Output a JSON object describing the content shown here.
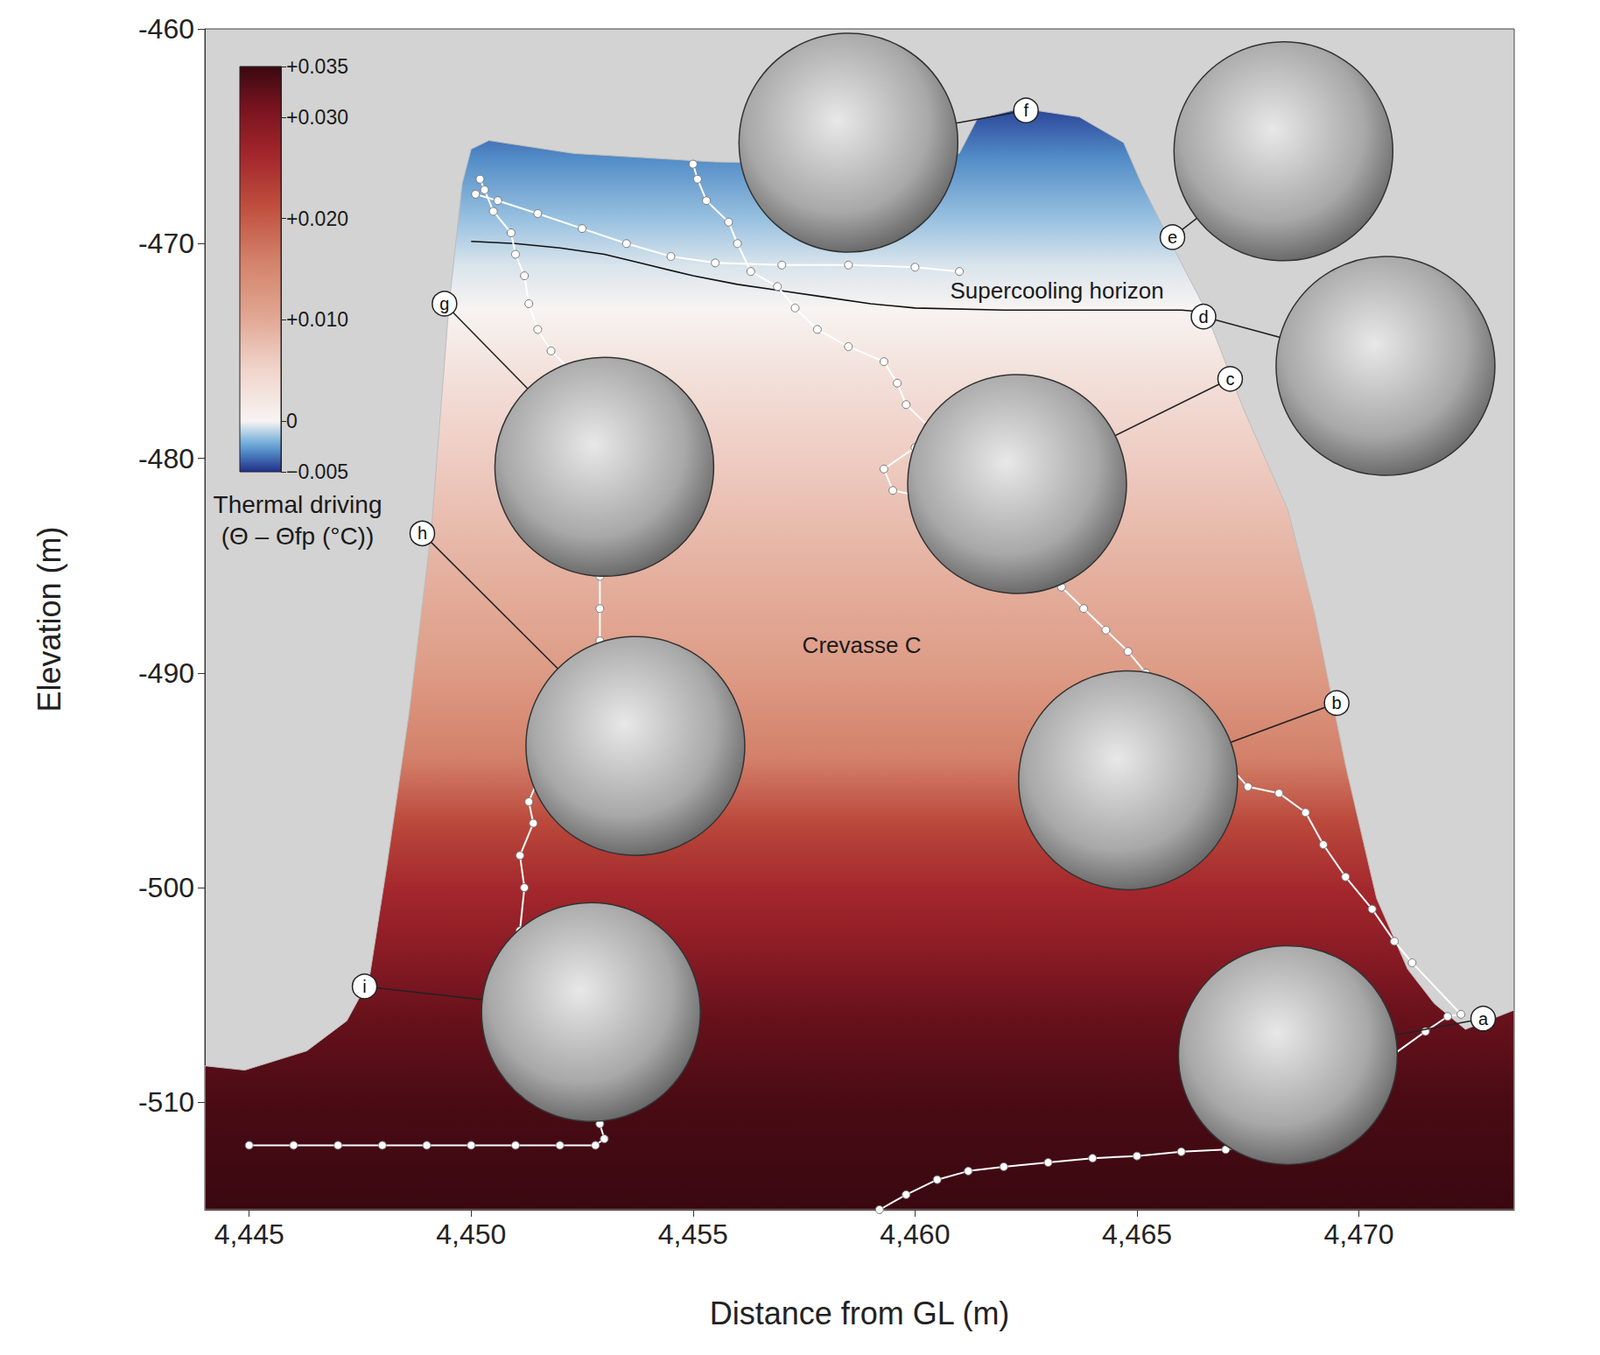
{
  "chart_data": {
    "type": "section",
    "xlabel": "Distance from GL (m)",
    "ylabel": "Elevation (m)",
    "xlim": [
      4444,
      4473.5
    ],
    "ylim": [
      -515,
      -460
    ],
    "xticks": [
      {
        "value": 4445,
        "label": "4,445"
      },
      {
        "value": 4450,
        "label": "4,450"
      },
      {
        "value": 4455,
        "label": "4,455"
      },
      {
        "value": 4460,
        "label": "4,460"
      },
      {
        "value": 4465,
        "label": "4,465"
      },
      {
        "value": 4470,
        "label": "4,470"
      }
    ],
    "yticks": [
      -510,
      -500,
      -490,
      -480,
      -470,
      -460
    ],
    "grid": false,
    "outline": [
      [
        4444,
        -508.3
      ],
      [
        4444.9,
        -508.5
      ],
      [
        4446.3,
        -507.6
      ],
      [
        4447.2,
        -506.2
      ],
      [
        4447.7,
        -504.3
      ],
      [
        4448.1,
        -499
      ],
      [
        4448.6,
        -491.9
      ],
      [
        4449.1,
        -483.4
      ],
      [
        4449.5,
        -472.9
      ],
      [
        4449.8,
        -467.2
      ],
      [
        4450,
        -465.6
      ],
      [
        4450.4,
        -465.2
      ],
      [
        4452.3,
        -465.8
      ],
      [
        4455.5,
        -466.2
      ],
      [
        4458.9,
        -466.3
      ],
      [
        4461,
        -465.8
      ],
      [
        4461.4,
        -464.2
      ],
      [
        4462.4,
        -463.7
      ],
      [
        4463.7,
        -464.1
      ],
      [
        4464.7,
        -465.3
      ],
      [
        4465.1,
        -467.2
      ],
      [
        4465.8,
        -470.1
      ],
      [
        4466.5,
        -472.9
      ],
      [
        4467.4,
        -477.7
      ],
      [
        4468.4,
        -482.4
      ],
      [
        4469,
        -487.2
      ],
      [
        4469.7,
        -494.3
      ],
      [
        4470.4,
        -500.5
      ],
      [
        4471.1,
        -503.8
      ],
      [
        4471.7,
        -505.4
      ],
      [
        4472.4,
        -506.6
      ],
      [
        4473.5,
        -505.7
      ],
      [
        4473.5,
        -515
      ],
      [
        4444,
        -515
      ]
    ],
    "thermal_driving": {
      "title": "Thermal driving (Θ – Θfp (°C))",
      "elevation": [
        -463,
        -466,
        -469,
        -471,
        -473,
        -476,
        -480,
        -485,
        -490,
        -494,
        -497,
        -500,
        -503,
        -506,
        -510,
        -515
      ],
      "values": [
        -0.005,
        -0.003,
        -0.0015,
        -0.0005,
        0,
        0.003,
        0.006,
        0.009,
        0.012,
        0.016,
        0.022,
        0.026,
        0.029,
        0.032,
        0.034,
        0.035
      ],
      "range": [
        -0.005,
        0.035
      ],
      "ticks": [
        {
          "value": -0.005,
          "label": "−0.005"
        },
        0,
        {
          "value": 0.01,
          "label": "+0.010"
        },
        {
          "value": 0.02,
          "label": "+0.020"
        },
        {
          "value": 0.03,
          "label": "+0.030"
        },
        {
          "value": 0.035,
          "label": "+0.035"
        }
      ]
    },
    "horizon": [
      [
        4450,
        -469.9
      ],
      [
        4451,
        -470
      ],
      [
        4452,
        -470.2
      ],
      [
        4453,
        -470.5
      ],
      [
        4454,
        -471
      ],
      [
        4455,
        -471.5
      ],
      [
        4456,
        -471.9
      ],
      [
        4457,
        -472.2
      ],
      [
        4458,
        -472.5
      ],
      [
        4459,
        -472.8
      ],
      [
        4460,
        -473
      ],
      [
        4462,
        -473.1
      ],
      [
        4464,
        -473.1
      ],
      [
        4466,
        -473.1
      ],
      [
        4466.6,
        -473.2
      ]
    ],
    "tracks": {
      "marker": "circle",
      "color": "#ffffff",
      "paths": [
        [
          [
            4445,
            -512
          ],
          [
            4446,
            -512
          ],
          [
            4447,
            -512
          ],
          [
            4448,
            -512
          ],
          [
            4449,
            -512
          ],
          [
            4450,
            -512
          ],
          [
            4451,
            -512
          ],
          [
            4452,
            -512
          ],
          [
            4452.8,
            -512
          ],
          [
            4453,
            -511.7
          ],
          [
            4452.9,
            -511
          ],
          [
            4452.7,
            -510.5
          ],
          [
            4451.3,
            -503.5
          ],
          [
            4451.1,
            -502
          ],
          [
            4451.2,
            -500
          ],
          [
            4451.1,
            -498.5
          ],
          [
            4451.4,
            -497
          ],
          [
            4451.3,
            -496
          ],
          [
            4451.6,
            -494.5
          ],
          [
            4452.9,
            -488.5
          ],
          [
            4452.9,
            -487
          ],
          [
            4452.9,
            -485.5
          ],
          [
            4452.9,
            -484.5
          ],
          [
            4452.6,
            -477
          ],
          [
            4452.3,
            -476
          ],
          [
            4451.8,
            -475
          ],
          [
            4451.5,
            -474
          ],
          [
            4451.3,
            -472.8
          ],
          [
            4451.2,
            -471.5
          ],
          [
            4451,
            -470.5
          ],
          [
            4450.9,
            -469.5
          ],
          [
            4450.5,
            -468.5
          ],
          [
            4450.3,
            -467.5
          ],
          [
            4450.2,
            -467
          ]
        ],
        [
          [
            4450.1,
            -467.7
          ],
          [
            4450.6,
            -468
          ],
          [
            4451.5,
            -468.6
          ],
          [
            4452.5,
            -469.3
          ],
          [
            4453.5,
            -470
          ],
          [
            4454.5,
            -470.6
          ],
          [
            4455.5,
            -470.9
          ],
          [
            4457,
            -471
          ],
          [
            4458.5,
            -471
          ],
          [
            4460,
            -471.1
          ],
          [
            4461,
            -471.3
          ]
        ],
        [
          [
            4459.2,
            -515
          ],
          [
            4459.8,
            -514.3
          ],
          [
            4460.5,
            -513.6
          ],
          [
            4461.2,
            -513.2
          ],
          [
            4462,
            -513
          ],
          [
            4463,
            -512.8
          ],
          [
            4464,
            -512.6
          ],
          [
            4465,
            -512.5
          ],
          [
            4466,
            -512.3
          ],
          [
            4467,
            -512.2
          ],
          [
            4468,
            -511.9
          ],
          [
            4471.5,
            -506.7
          ],
          [
            4472,
            -506
          ],
          [
            4472.3,
            -505.9
          ],
          [
            4471.2,
            -503.5
          ],
          [
            4470.8,
            -502.5
          ],
          [
            4470.3,
            -501
          ],
          [
            4469.7,
            -499.5
          ],
          [
            4469.2,
            -498
          ],
          [
            4468.8,
            -496.5
          ],
          [
            4468.2,
            -495.6
          ],
          [
            4467.5,
            -495.3
          ],
          [
            4465.2,
            -490
          ],
          [
            4464.8,
            -489
          ],
          [
            4464.3,
            -488
          ],
          [
            4463.8,
            -487
          ],
          [
            4463.3,
            -486
          ],
          [
            4460.2,
            -481.8
          ],
          [
            4459.5,
            -481.5
          ],
          [
            4459.3,
            -480.5
          ],
          [
            4460,
            -479.5
          ],
          [
            4460.3,
            -478.5
          ],
          [
            4459.8,
            -477.5
          ],
          [
            4459.6,
            -476.5
          ],
          [
            4459.3,
            -475.5
          ],
          [
            4458.5,
            -474.8
          ],
          [
            4457.8,
            -474
          ],
          [
            4457.3,
            -473
          ],
          [
            4456.9,
            -472
          ],
          [
            4456.3,
            -471.3
          ],
          [
            4456,
            -470
          ],
          [
            4455.8,
            -469
          ],
          [
            4455.3,
            -468
          ],
          [
            4455.1,
            -467
          ],
          [
            4455,
            -466.3
          ]
        ]
      ]
    },
    "photos": [
      {
        "label": "a",
        "x": 4468.4,
        "y": -507.8,
        "label_x": 4472.8,
        "label_y": -506.1
      },
      {
        "label": "b",
        "x": 4464.8,
        "y": -495.0,
        "label_x": 4469.5,
        "label_y": -491.4
      },
      {
        "label": "c",
        "x": 4462.3,
        "y": -481.2,
        "label_x": 4467.1,
        "label_y": -476.3
      },
      {
        "label": "d",
        "x": 4470.6,
        "y": -475.7,
        "label_x": 4466.5,
        "label_y": -473.4
      },
      {
        "label": "e",
        "x": 4468.3,
        "y": -465.7,
        "label_x": 4465.8,
        "label_y": -469.7
      },
      {
        "label": "f",
        "x": 4458.5,
        "y": -465.3,
        "label_x": 4462.5,
        "label_y": -463.8
      },
      {
        "label": "g",
        "x": 4453.0,
        "y": -480.4,
        "label_x": 4449.4,
        "label_y": -472.8
      },
      {
        "label": "h",
        "x": 4453.7,
        "y": -493.4,
        "label_x": 4448.9,
        "label_y": -483.5
      },
      {
        "label": "i",
        "x": 4452.7,
        "y": -505.8,
        "label_x": 4447.6,
        "label_y": -504.6
      }
    ],
    "annotations": [
      {
        "text": "Supercooling horizon",
        "x": 4463.2,
        "y": -472.2
      },
      {
        "text": "Crevasse C",
        "x": 4458.8,
        "y": -488.7
      }
    ]
  }
}
